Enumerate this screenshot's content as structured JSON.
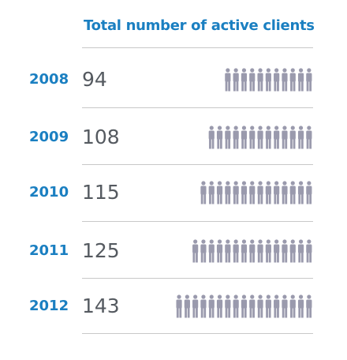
{
  "chart_data": {
    "type": "bar",
    "title": "Total number of active clients",
    "categories": [
      "2008",
      "2009",
      "2010",
      "2011",
      "2012"
    ],
    "values": [
      94,
      108,
      115,
      125,
      143
    ],
    "colors": {
      "title": "#1a7fc1",
      "year": "#1a7fc1",
      "value": "#555a60",
      "figure": "#9a9aad",
      "rule": "#c8c8c8"
    },
    "icon": "person-icon",
    "rows": [
      {
        "year": "2008",
        "value": "94"
      },
      {
        "year": "2009",
        "value": "108"
      },
      {
        "year": "2010",
        "value": "115"
      },
      {
        "year": "2011",
        "value": "125"
      },
      {
        "year": "2012",
        "value": "143"
      }
    ]
  }
}
